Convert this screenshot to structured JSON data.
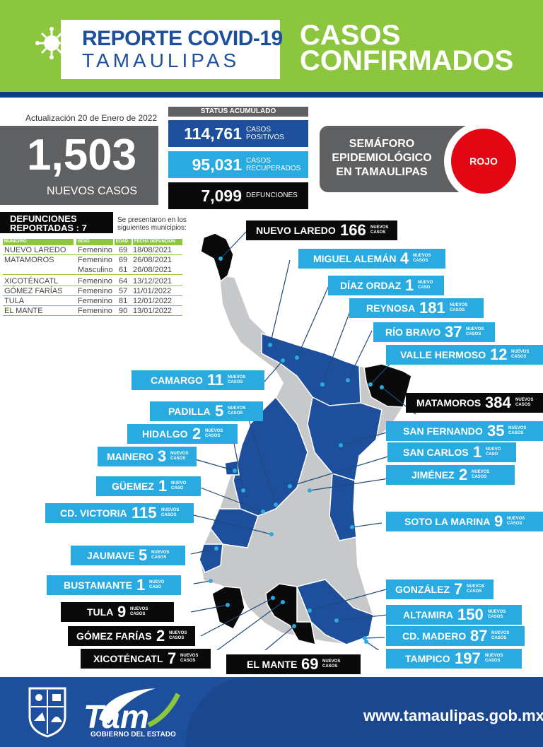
{
  "header": {
    "title_line1": "REPORTE COVID-19",
    "title_line2": "TAMAULIPAS",
    "section_line1": "CASOS",
    "section_line2": "CONFIRMADOS",
    "brand_green": "#8cc63f",
    "brand_blue": "#1d4f9c"
  },
  "summary": {
    "update": "Actualización 20 de Enero de 2022",
    "new_cases": "1,503",
    "new_cases_label": "NUEVOS CASOS"
  },
  "accumulated": {
    "header": "STATUS ACUMULADO",
    "positive": {
      "value": "114,761",
      "label1": "CASOS",
      "label2": "POSITIVOS"
    },
    "recovered": {
      "value": "95,031",
      "label1": "CASOS",
      "label2": "RECUPERADOS"
    },
    "deaths": {
      "value": "7,099",
      "label": "DEFUNCIONES"
    }
  },
  "semaforo": {
    "line1": "SEMÁFORO",
    "line2": "EPIDEMIOLÓGICO",
    "line3": "EN TAMAULIPAS",
    "status": "ROJO",
    "status_color": "#e30613"
  },
  "deaths_table": {
    "title_line1": "DEFUNCIONES",
    "title_line2": "REPORTADAS : 7",
    "note_line1": "Se presentaron en los",
    "note_line2": "siguientes municipios:",
    "headers": {
      "municipio": "MUNICIPIO",
      "sexo": "SEXO",
      "edad": "EDAD",
      "fecha": "FECHA DEFUNCIÓN"
    },
    "rows": [
      {
        "municipio": "NUEVO LAREDO",
        "sexo": "Femenino",
        "edad": "69",
        "fecha": "18/08/2021"
      },
      {
        "municipio": "MATAMOROS",
        "sexo": "Femenino",
        "edad": "69",
        "fecha": "26/08/2021"
      },
      {
        "municipio": "",
        "sexo": "Masculino",
        "edad": "61",
        "fecha": "26/08/2021"
      },
      {
        "municipio": "XICOTÉNCATL",
        "sexo": "Femenino",
        "edad": "64",
        "fecha": "13/12/2021"
      },
      {
        "municipio": "GÓMEZ FARÍAS",
        "sexo": "Femenino",
        "edad": "57",
        "fecha": "11/01/2022"
      },
      {
        "municipio": "TULA",
        "sexo": "Femenino",
        "edad": "81",
        "fecha": "12/01/2022"
      },
      {
        "municipio": "EL MANTE",
        "sexo": "Femenino",
        "edad": "90",
        "fecha": "13/01/2022"
      }
    ]
  },
  "municipalities": [
    {
      "name": "NUEVO LAREDO",
      "count": "166",
      "nc1": "NUEVOS",
      "nc2": "CASOS"
    },
    {
      "name": "MIGUEL ALEMÁN",
      "count": "4",
      "nc1": "NUEVOS",
      "nc2": "CASOS"
    },
    {
      "name": "DÍAZ ORDAZ",
      "count": "1",
      "nc1": "NUEVO",
      "nc2": "CASO"
    },
    {
      "name": "REYNOSA",
      "count": "181",
      "nc1": "NUEVOS",
      "nc2": "CASOS"
    },
    {
      "name": "RÍO BRAVO",
      "count": "37",
      "nc1": "NUEVOS",
      "nc2": "CASOS"
    },
    {
      "name": "VALLE HERMOSO",
      "count": "12",
      "nc1": "NUEVOS",
      "nc2": "CASOS"
    },
    {
      "name": "CAMARGO",
      "count": "11",
      "nc1": "NUEVOS",
      "nc2": "CASOS"
    },
    {
      "name": "MATAMOROS",
      "count": "384",
      "nc1": "NUEVOS",
      "nc2": "CASOS"
    },
    {
      "name": "PADILLA",
      "count": "5",
      "nc1": "NUEVOS",
      "nc2": "CASOS"
    },
    {
      "name": "SAN FERNANDO",
      "count": "35",
      "nc1": "NUEVOS",
      "nc2": "CASOS"
    },
    {
      "name": "HIDALGO",
      "count": "2",
      "nc1": "NUEVOS",
      "nc2": "CASOS"
    },
    {
      "name": "SAN CARLOS",
      "count": "1",
      "nc1": "NUEVO",
      "nc2": "CASO"
    },
    {
      "name": "MAINERO",
      "count": "3",
      "nc1": "NUEVOS",
      "nc2": "CASOS"
    },
    {
      "name": "JIMÉNEZ",
      "count": "2",
      "nc1": "NUEVOS",
      "nc2": "CASOS"
    },
    {
      "name": "GÜEMEZ",
      "count": "1",
      "nc1": "NUEVO",
      "nc2": "CASO"
    },
    {
      "name": "CD. VICTORIA",
      "count": "115",
      "nc1": "NUEVOS",
      "nc2": "CASOS"
    },
    {
      "name": "SOTO LA MARINA",
      "count": "9",
      "nc1": "NUEVOS",
      "nc2": "CASOS"
    },
    {
      "name": "JAUMAVE",
      "count": "5",
      "nc1": "NUEVOS",
      "nc2": "CASOS"
    },
    {
      "name": "BUSTAMANTE",
      "count": "1",
      "nc1": "NUEVO",
      "nc2": "CASO"
    },
    {
      "name": "GONZÁLEZ",
      "count": "7",
      "nc1": "NUEVOS",
      "nc2": "CASOS"
    },
    {
      "name": "TULA",
      "count": "9",
      "nc1": "NUEVOS",
      "nc2": "CASOS"
    },
    {
      "name": "ALTAMIRA",
      "count": "150",
      "nc1": "NUEVOS",
      "nc2": "CASOS"
    },
    {
      "name": "GÓMEZ FARÍAS",
      "count": "2",
      "nc1": "NUEVOS",
      "nc2": "CASOS"
    },
    {
      "name": "CD. MADERO",
      "count": "87",
      "nc1": "NUEVOS",
      "nc2": "CASOS"
    },
    {
      "name": "XICOTÉNCATL",
      "count": "7",
      "nc1": "NUEVOS",
      "nc2": "CASOS"
    },
    {
      "name": "EL MANTE",
      "count": "69",
      "nc1": "NUEVOS",
      "nc2": "CASOS"
    },
    {
      "name": "TAMPICO",
      "count": "197",
      "nc1": "NUEVOS",
      "nc2": "CASOS"
    }
  ],
  "footer": {
    "logo_text": "Tam",
    "gob_label": "GOBIERNO DEL ESTADO",
    "url": "www.tamaulipas.gob.mx"
  }
}
